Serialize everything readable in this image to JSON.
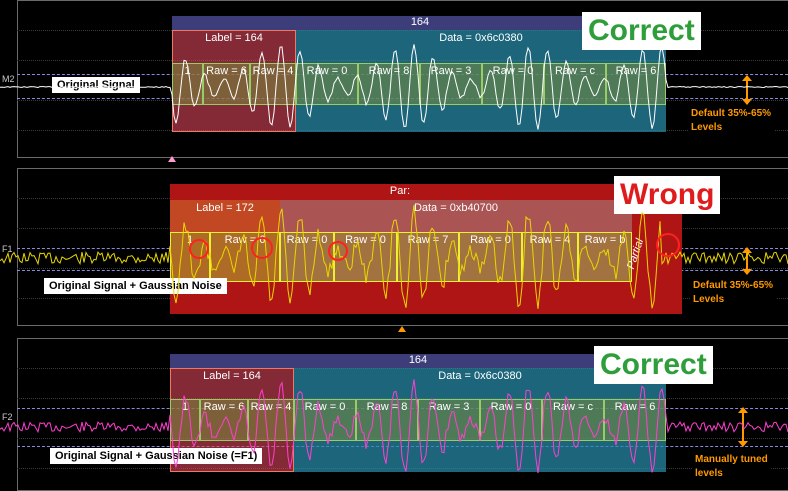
{
  "panel1": {
    "channel": "M2",
    "top_label": "164",
    "label_field": "Label = 164",
    "data_field": "Data = 0x6c0380",
    "raws": [
      "1",
      "Raw = 6",
      "Raw = 4",
      "Raw = 0",
      "Raw = 8",
      "Raw = 3",
      "Raw = 0",
      "Raw = c",
      "Raw = 6"
    ],
    "signal_label": "Original Signal",
    "verdict": "Correct",
    "verdict_color": "#2e9e3a",
    "level_note": [
      "Default 35%-65%",
      "Levels"
    ],
    "trace_color": "#ffffff"
  },
  "panel2": {
    "channel": "F1",
    "top_label": "Par:",
    "label_field": "Label = 172",
    "data_field": "Data = 0xb40700",
    "raws": [
      "1",
      "Raw = 6",
      "Raw = 0",
      "Raw = 0",
      "Raw = 7",
      "Raw = 0",
      "Raw = 4",
      "Raw = b"
    ],
    "partial_label": "Partial",
    "signal_label": "Original Signal + Gaussian Noise",
    "verdict": "Wrong",
    "verdict_color": "#e01b1b",
    "level_note": [
      "Default 35%-65%",
      "Levels"
    ],
    "trace_color": "#e8d800"
  },
  "panel3": {
    "channel": "F2",
    "top_label": "164",
    "label_field": "Label = 164",
    "data_field": "Data = 0x6c0380",
    "raws": [
      "1",
      "Raw = 6",
      "Raw = 4",
      "Raw = 0",
      "Raw = 8",
      "Raw = 3",
      "Raw = 0",
      "Raw = c",
      "Raw = 6"
    ],
    "signal_label": "Original Signal + Gaussian Noise (=F1)",
    "verdict": "Correct",
    "verdict_color": "#2e9e3a",
    "level_note": [
      "Manually tuned",
      "levels"
    ],
    "trace_color": "#ff3fd0"
  }
}
